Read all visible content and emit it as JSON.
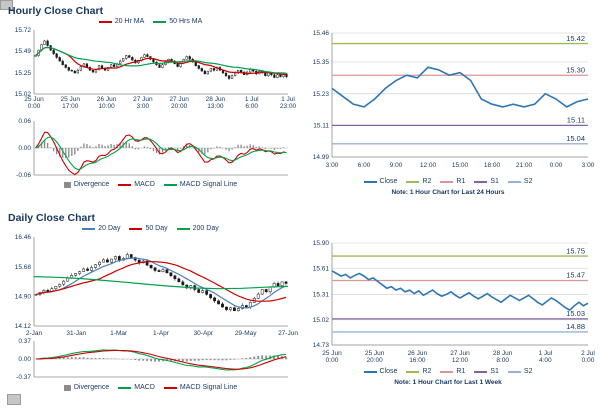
{
  "theme": {
    "background": "#FFFFFF",
    "text_color": "#17375D",
    "axis_color": "#8C8C8C",
    "grid_color": "#DCDCDC",
    "candle_up_color": "#FFFFFF",
    "candle_down_color": "#1A1A1A"
  },
  "chart_data": [
    {
      "id": "hourly_price",
      "type": "candlestick",
      "title": "Hourly Close Chart",
      "ylim": [
        15.02,
        15.72
      ],
      "yticks": [
        "15.72",
        "15.49",
        "15.25",
        "15.02"
      ],
      "xticks": [
        "25 Jun\n0:00",
        "25 Jun\n17:00",
        "26 Jun\n10:00",
        "27 Jun\n3:00",
        "27 Jun\n20:00",
        "28 Jun\n13:00",
        "1 Jul\n6:00",
        "1 Jul\n23:00"
      ],
      "close": [
        15.44,
        15.5,
        15.56,
        15.6,
        15.55,
        15.5,
        15.46,
        15.42,
        15.38,
        15.34,
        15.31,
        15.28,
        15.27,
        15.25,
        15.28,
        15.32,
        15.35,
        15.31,
        15.28,
        15.26,
        15.29,
        15.33,
        15.3,
        15.28,
        15.31,
        15.34,
        15.32,
        15.35,
        15.38,
        15.41,
        15.44,
        15.42,
        15.39,
        15.36,
        15.39,
        15.42,
        15.45,
        15.43,
        15.4,
        15.37,
        15.34,
        15.31,
        15.34,
        15.37,
        15.4,
        15.38,
        15.35,
        15.32,
        15.36,
        15.4,
        15.43,
        15.4,
        15.37,
        15.33,
        15.3,
        15.27,
        15.24,
        15.27,
        15.3,
        15.28,
        15.31,
        15.28,
        15.25,
        15.22,
        15.19,
        15.22,
        15.25,
        15.28,
        15.26,
        15.23,
        15.26,
        15.29,
        15.27,
        15.24,
        15.27,
        15.25,
        15.22,
        15.25,
        15.23,
        15.2,
        15.23,
        15.21,
        15.24,
        15.21
      ],
      "ma": [
        {
          "label": "20 Hr MA",
          "color": "#CC0000",
          "window": 10
        },
        {
          "label": "50 Hrs MA",
          "color": "#00A14B",
          "window": 25
        }
      ]
    },
    {
      "id": "hourly_macd",
      "type": "macd",
      "source": "hourly_price",
      "ylim": [
        -0.06,
        0.06
      ],
      "yticks": [
        "0.06",
        "0.00",
        "-0.06"
      ],
      "fast": 6,
      "slow": 13,
      "signal": 5,
      "legend": [
        {
          "label": "Divergence",
          "color": "#8C8C8C",
          "swatch": "bar"
        },
        {
          "label": "MACD",
          "color": "#CC0000",
          "swatch": "line"
        },
        {
          "label": "MACD Signal Line",
          "color": "#00A14B",
          "swatch": "line"
        }
      ]
    },
    {
      "id": "hourly_pivot",
      "type": "line",
      "note": "Note: 1 Hour Chart for Last 24 Hours",
      "ylim": [
        14.99,
        15.46
      ],
      "yticks": [
        "15.46",
        "15.35",
        "15.23",
        "15.11",
        "14.99"
      ],
      "xticks": [
        "3:00",
        "6:00",
        "9:00",
        "12:00",
        "15:00",
        "18:00",
        "21:00",
        "0:00",
        "3:00"
      ],
      "close": {
        "label": "Close",
        "color": "#2E75B6",
        "values": [
          15.25,
          15.22,
          15.19,
          15.18,
          15.21,
          15.25,
          15.28,
          15.3,
          15.29,
          15.33,
          15.32,
          15.3,
          15.31,
          15.28,
          15.21,
          15.19,
          15.18,
          15.19,
          15.18,
          15.19,
          15.23,
          15.21,
          15.18,
          15.2,
          15.21
        ]
      },
      "levels": [
        {
          "label": "R2",
          "value": 15.42,
          "color": "#9BBB59"
        },
        {
          "label": "R1",
          "value": 15.3,
          "color": "#D99694"
        },
        {
          "label": "S1",
          "value": 15.11,
          "color": "#8064A2"
        },
        {
          "label": "S2",
          "value": 15.04,
          "color": "#95B3D7"
        }
      ]
    },
    {
      "id": "daily_price",
      "type": "candlestick",
      "title": "Daily Close Chart",
      "ylim": [
        14.12,
        16.46
      ],
      "yticks": [
        "16.46",
        "15.68",
        "14.90",
        "14.12"
      ],
      "xticks": [
        "2-Jan",
        "31-Jan",
        "1-Mar",
        "1-Apr",
        "30-Apr",
        "29-May",
        "27-Jun"
      ],
      "close": [
        14.95,
        15.0,
        15.06,
        15.02,
        15.1,
        15.16,
        15.22,
        15.3,
        15.38,
        15.45,
        15.5,
        15.55,
        15.62,
        15.58,
        15.66,
        15.73,
        15.8,
        15.86,
        15.8,
        15.88,
        15.95,
        15.85,
        15.9,
        16.0,
        15.92,
        15.85,
        15.78,
        15.83,
        15.72,
        15.65,
        15.58,
        15.55,
        15.6,
        15.52,
        15.44,
        15.36,
        15.28,
        15.2,
        15.12,
        15.18,
        15.08,
        15.0,
        15.05,
        14.95,
        14.86,
        14.78,
        14.7,
        14.62,
        14.55,
        14.6,
        14.52,
        14.58,
        14.66,
        14.62,
        14.74,
        14.85,
        14.96,
        15.08,
        15.02,
        15.14,
        15.24,
        15.18,
        15.28,
        15.24
      ],
      "ma": [
        {
          "label": "20 Day",
          "color": "#4A7EBB",
          "window": 7
        },
        {
          "label": "50 Day",
          "color": "#CC0000",
          "window": 17
        },
        {
          "label": "200 Day",
          "color": "#00A14B",
          "values": [
            15.42,
            15.4,
            15.37,
            15.32,
            15.27,
            15.21,
            15.16,
            15.12,
            15.1,
            15.11,
            15.14,
            15.16
          ]
        }
      ]
    },
    {
      "id": "daily_macd",
      "type": "macd",
      "source": "daily_price",
      "ylim": [
        -0.37,
        0.37
      ],
      "yticks": [
        "0.37",
        "0.00",
        "-0.37"
      ],
      "fast": 8,
      "slow": 17,
      "signal": 6,
      "legend": [
        {
          "label": "Divergence",
          "color": "#8C8C8C",
          "swatch": "bar"
        },
        {
          "label": "MACD",
          "color": "#00A14B",
          "swatch": "line"
        },
        {
          "label": "MACD Signal Line",
          "color": "#CC0000",
          "swatch": "line"
        }
      ]
    },
    {
      "id": "weekly_pivot",
      "type": "line",
      "note": "Note: 1 Hour Chart for Last 1 Week",
      "ylim": [
        14.73,
        15.9
      ],
      "yticks": [
        "15.90",
        "15.61",
        "15.31",
        "15.02",
        "14.73"
      ],
      "xticks": [
        "25 Jun\n0:00",
        "25 Jun\n20:00",
        "26 Jun\n16:00",
        "27 Jun\n12:00",
        "28 Jun\n8:00",
        "1 Jul\n4:00",
        "2 Jul\n0:00"
      ],
      "close": {
        "label": "Close",
        "color": "#2E75B6",
        "values": [
          15.58,
          15.55,
          15.52,
          15.54,
          15.5,
          15.53,
          15.55,
          15.52,
          15.48,
          15.5,
          15.46,
          15.42,
          15.38,
          15.4,
          15.36,
          15.38,
          15.34,
          15.36,
          15.32,
          15.35,
          15.3,
          15.33,
          15.36,
          15.32,
          15.29,
          15.31,
          15.34,
          15.3,
          15.27,
          15.3,
          15.33,
          15.29,
          15.26,
          15.29,
          15.32,
          15.28,
          15.25,
          15.22,
          15.26,
          15.3,
          15.27,
          15.24,
          15.27,
          15.3,
          15.26,
          15.22,
          15.19,
          15.23,
          15.27,
          15.24,
          15.2,
          15.16,
          15.13,
          15.18,
          15.22,
          15.18,
          15.21
        ]
      },
      "levels": [
        {
          "label": "R2",
          "value": 15.75,
          "color": "#9BBB59"
        },
        {
          "label": "R1",
          "value": 15.47,
          "color": "#D99694"
        },
        {
          "label": "S1",
          "value": 15.03,
          "color": "#8064A2"
        },
        {
          "label": "S2",
          "value": 14.88,
          "color": "#95B3D7"
        }
      ]
    }
  ]
}
